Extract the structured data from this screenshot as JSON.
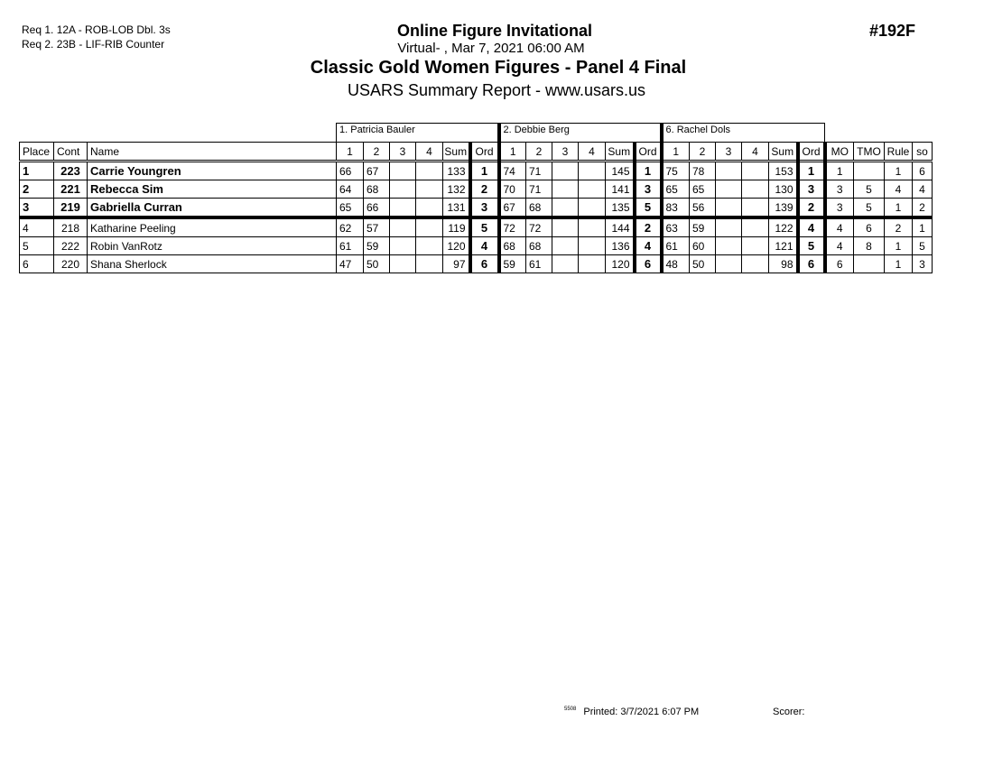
{
  "requirements": [
    "Req  1.  12A - ROB-LOB Dbl. 3s",
    "Req  2.  23B - LIF-RIB Counter"
  ],
  "header": {
    "event": "Online Figure Invitational",
    "location_date": "Virtual- ,   Mar 7, 2021  06:00 AM",
    "event_title": "Classic Gold Women Figures - Panel 4 Final",
    "report": "USARS Summary Report - www.usars.us",
    "event_number": "#192F"
  },
  "judges": [
    "1.  Patricia Bauler",
    "2.  Debbie Berg",
    "6.  Rachel Dols"
  ],
  "columns": {
    "place": "Place",
    "cont": "Cont",
    "name": "Name",
    "judge_cols": [
      "1",
      "2",
      "3",
      "4",
      "Sum",
      "Ord"
    ],
    "mo": "MO",
    "tmo": "TMO",
    "rule": "Rule",
    "so": "so"
  },
  "rows": [
    {
      "place": "1",
      "cont": "223",
      "name": "Carrie Youngren",
      "bold": true,
      "j": [
        [
          "66",
          "67",
          "",
          "",
          "133",
          "1"
        ],
        [
          "74",
          "71",
          "",
          "",
          "145",
          "1"
        ],
        [
          "75",
          "78",
          "",
          "",
          "153",
          "1"
        ]
      ],
      "mo": "1",
      "tmo": "",
      "rule": "1",
      "so": "6"
    },
    {
      "place": "2",
      "cont": "221",
      "name": "Rebecca Sim",
      "bold": true,
      "j": [
        [
          "64",
          "68",
          "",
          "",
          "132",
          "2"
        ],
        [
          "70",
          "71",
          "",
          "",
          "141",
          "3"
        ],
        [
          "65",
          "65",
          "",
          "",
          "130",
          "3"
        ]
      ],
      "mo": "3",
      "tmo": "5",
      "rule": "4",
      "so": "4"
    },
    {
      "place": "3",
      "cont": "219",
      "name": "Gabriella Curran",
      "bold": true,
      "j": [
        [
          "65",
          "66",
          "",
          "",
          "131",
          "3"
        ],
        [
          "67",
          "68",
          "",
          "",
          "135",
          "5"
        ],
        [
          "83",
          "56",
          "",
          "",
          "139",
          "2"
        ]
      ],
      "mo": "3",
      "tmo": "5",
      "rule": "1",
      "so": "2"
    },
    {
      "place": "4",
      "cont": "218",
      "name": "Katharine Peeling",
      "bold": false,
      "j": [
        [
          "62",
          "57",
          "",
          "",
          "119",
          "5"
        ],
        [
          "72",
          "72",
          "",
          "",
          "144",
          "2"
        ],
        [
          "63",
          "59",
          "",
          "",
          "122",
          "4"
        ]
      ],
      "mo": "4",
      "tmo": "6",
      "rule": "2",
      "so": "1"
    },
    {
      "place": "5",
      "cont": "222",
      "name": "Robin VanRotz",
      "bold": false,
      "j": [
        [
          "61",
          "59",
          "",
          "",
          "120",
          "4"
        ],
        [
          "68",
          "68",
          "",
          "",
          "136",
          "4"
        ],
        [
          "61",
          "60",
          "",
          "",
          "121",
          "5"
        ]
      ],
      "mo": "4",
      "tmo": "8",
      "rule": "1",
      "so": "5"
    },
    {
      "place": "6",
      "cont": "220",
      "name": "Shana Sherlock",
      "bold": false,
      "j": [
        [
          "47",
          "50",
          "",
          "",
          "97",
          "6"
        ],
        [
          "59",
          "61",
          "",
          "",
          "120",
          "6"
        ],
        [
          "48",
          "50",
          "",
          "",
          "98",
          "6"
        ]
      ],
      "mo": "6",
      "tmo": "",
      "rule": "1",
      "so": "3"
    }
  ],
  "footer": {
    "code": "5508",
    "printed": "Printed:  3/7/2021  6:07 PM",
    "scorer": "Scorer:"
  }
}
